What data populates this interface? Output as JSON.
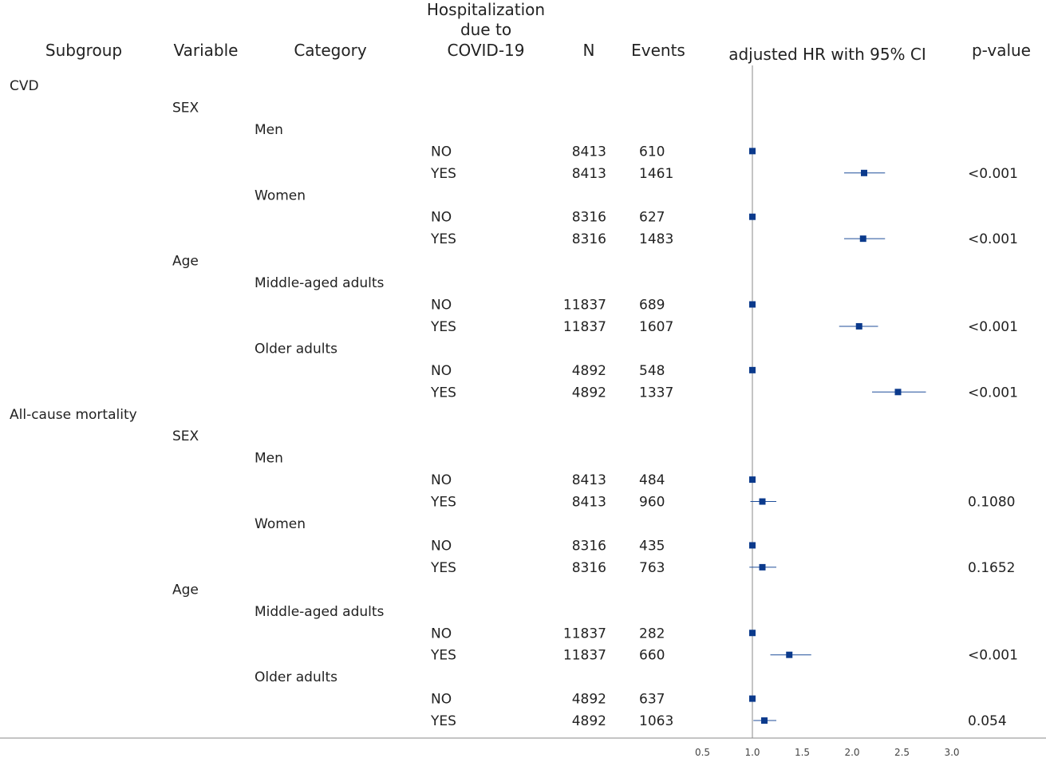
{
  "chart_data": {
    "type": "forest",
    "headers": {
      "subgroup": "Subgroup",
      "variable": "Variable",
      "category": "Category",
      "hosp": [
        "Hospitalization",
        "due to",
        "COVID-19"
      ],
      "n": "N",
      "events": "Events",
      "hr": "adjusted HR with 95% CI",
      "p": "p-value"
    },
    "x_axis": {
      "range": [
        0.5,
        3.0
      ],
      "ticks": [
        0.5,
        1.0,
        1.5,
        2.0,
        2.5,
        3.0
      ],
      "tick_labels": [
        "0.5",
        "1.0",
        "1.5",
        "2.0",
        "2.5",
        "3.0"
      ],
      "reference": 1.0
    },
    "rows": [
      {
        "kind": "subgroup",
        "label": "CVD"
      },
      {
        "kind": "variable",
        "label": "SEX"
      },
      {
        "kind": "category",
        "label": "Men"
      },
      {
        "kind": "data",
        "hosp": "NO",
        "n": "8413",
        "events": "610",
        "hr": 1.0,
        "lo": 1.0,
        "hi": 1.0,
        "p": ""
      },
      {
        "kind": "data",
        "hosp": "YES",
        "n": "8413",
        "events": "1461",
        "hr": 2.12,
        "lo": 1.92,
        "hi": 2.33,
        "p": "<0.001"
      },
      {
        "kind": "category",
        "label": "Women"
      },
      {
        "kind": "data",
        "hosp": "NO",
        "n": "8316",
        "events": "627",
        "hr": 1.0,
        "lo": 1.0,
        "hi": 1.0,
        "p": ""
      },
      {
        "kind": "data",
        "hosp": "YES",
        "n": "8316",
        "events": "1483",
        "hr": 2.11,
        "lo": 1.92,
        "hi": 2.33,
        "p": "<0.001"
      },
      {
        "kind": "variable",
        "label": "Age"
      },
      {
        "kind": "category",
        "label": "Middle-aged adults"
      },
      {
        "kind": "data",
        "hosp": "NO",
        "n": "11837",
        "events": "689",
        "hr": 1.0,
        "lo": 1.0,
        "hi": 1.0,
        "p": ""
      },
      {
        "kind": "data",
        "hosp": "YES",
        "n": "11837",
        "events": "1607",
        "hr": 2.07,
        "lo": 1.87,
        "hi": 2.26,
        "p": "<0.001"
      },
      {
        "kind": "category",
        "label": "Older adults"
      },
      {
        "kind": "data",
        "hosp": "NO",
        "n": "4892",
        "events": "548",
        "hr": 1.0,
        "lo": 1.0,
        "hi": 1.0,
        "p": ""
      },
      {
        "kind": "data",
        "hosp": "YES",
        "n": "4892",
        "events": "1337",
        "hr": 2.46,
        "lo": 2.2,
        "hi": 2.74,
        "p": "<0.001"
      },
      {
        "kind": "subgroup",
        "label": "All-cause mortality"
      },
      {
        "kind": "variable",
        "label": "SEX"
      },
      {
        "kind": "category",
        "label": "Men"
      },
      {
        "kind": "data",
        "hosp": "NO",
        "n": "8413",
        "events": "484",
        "hr": 1.0,
        "lo": 1.0,
        "hi": 1.0,
        "p": ""
      },
      {
        "kind": "data",
        "hosp": "YES",
        "n": "8413",
        "events": "960",
        "hr": 1.1,
        "lo": 0.98,
        "hi": 1.24,
        "p": "0.1080"
      },
      {
        "kind": "category",
        "label": "Women"
      },
      {
        "kind": "data",
        "hosp": "NO",
        "n": "8316",
        "events": "435",
        "hr": 1.0,
        "lo": 1.0,
        "hi": 1.0,
        "p": ""
      },
      {
        "kind": "data",
        "hosp": "YES",
        "n": "8316",
        "events": "763",
        "hr": 1.1,
        "lo": 0.97,
        "hi": 1.24,
        "p": "0.1652"
      },
      {
        "kind": "variable",
        "label": "Age"
      },
      {
        "kind": "category",
        "label": "Middle-aged adults"
      },
      {
        "kind": "data",
        "hosp": "NO",
        "n": "11837",
        "events": "282",
        "hr": 1.0,
        "lo": 1.0,
        "hi": 1.0,
        "p": ""
      },
      {
        "kind": "data",
        "hosp": "YES",
        "n": "11837",
        "events": "660",
        "hr": 1.37,
        "lo": 1.18,
        "hi": 1.59,
        "p": "<0.001"
      },
      {
        "kind": "category",
        "label": "Older adults"
      },
      {
        "kind": "data",
        "hosp": "NO",
        "n": "4892",
        "events": "637",
        "hr": 1.0,
        "lo": 1.0,
        "hi": 1.0,
        "p": ""
      },
      {
        "kind": "data",
        "hosp": "YES",
        "n": "4892",
        "events": "1063",
        "hr": 1.12,
        "lo": 1.01,
        "hi": 1.24,
        "p": "0.054"
      }
    ]
  }
}
